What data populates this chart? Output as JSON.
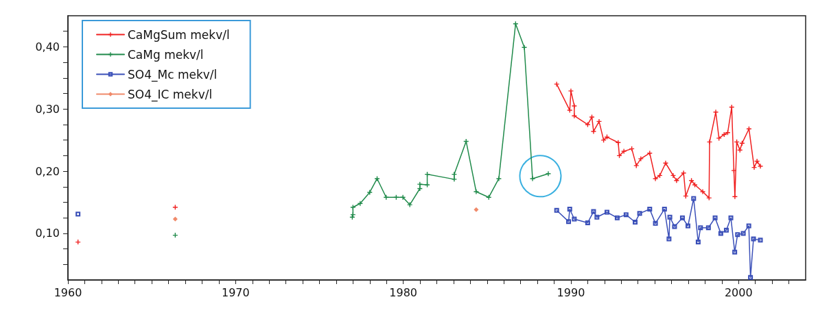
{
  "chart_data": {
    "type": "line",
    "legend": "top left",
    "grid": false,
    "xlim": [
      1960,
      2004
    ],
    "xticks": [
      1960,
      {
        "value": 1961,
        "label": null
      },
      {
        "value": 1962,
        "label": null
      },
      {
        "value": 1963,
        "label": null
      },
      {
        "value": 1964,
        "label": null
      },
      {
        "value": 1965,
        "label": null
      },
      {
        "value": 1966,
        "label": null
      },
      {
        "value": 1967,
        "label": null
      },
      {
        "value": 1968,
        "label": null
      },
      {
        "value": 1969,
        "label": null
      },
      1970,
      {
        "value": 1971,
        "label": null
      },
      {
        "value": 1972,
        "label": null
      },
      {
        "value": 1973,
        "label": null
      },
      {
        "value": 1974,
        "label": null
      },
      {
        "value": 1975,
        "label": null
      },
      {
        "value": 1976,
        "label": null
      },
      {
        "value": 1977,
        "label": null
      },
      {
        "value": 1978,
        "label": null
      },
      {
        "value": 1979,
        "label": null
      },
      1980,
      {
        "value": 1981,
        "label": null
      },
      {
        "value": 1982,
        "label": null
      },
      {
        "value": 1983,
        "label": null
      },
      {
        "value": 1984,
        "label": null
      },
      {
        "value": 1985,
        "label": null
      },
      {
        "value": 1986,
        "label": null
      },
      {
        "value": 1987,
        "label": null
      },
      {
        "value": 1988,
        "label": null
      },
      {
        "value": 1989,
        "label": null
      },
      1990,
      {
        "value": 1991,
        "label": null
      },
      {
        "value": 1992,
        "label": null
      },
      {
        "value": 1993,
        "label": null
      },
      {
        "value": 1994,
        "label": null
      },
      {
        "value": 1995,
        "label": null
      },
      {
        "value": 1996,
        "label": null
      },
      {
        "value": 1997,
        "label": null
      },
      {
        "value": 1998,
        "label": null
      },
      {
        "value": 1999,
        "label": null
      },
      2000,
      {
        "value": 2001,
        "label": null
      },
      {
        "value": 2002,
        "label": null
      },
      {
        "value": 2003,
        "label": null
      }
    ],
    "ylim": [
      0.025,
      0.45
    ],
    "yticks": [
      {
        "value": 0.05,
        "label": null
      },
      {
        "value": 0.075,
        "label": null
      },
      {
        "value": 0.1,
        "label": "0,10"
      },
      {
        "value": 0.125,
        "label": null
      },
      {
        "value": 0.15,
        "label": null
      },
      {
        "value": 0.175,
        "label": null
      },
      {
        "value": 0.2,
        "label": "0,20"
      },
      {
        "value": 0.225,
        "label": null
      },
      {
        "value": 0.25,
        "label": null
      },
      {
        "value": 0.275,
        "label": null
      },
      {
        "value": 0.3,
        "label": "0,30"
      },
      {
        "value": 0.325,
        "label": null
      },
      {
        "value": 0.35,
        "label": null
      },
      {
        "value": 0.375,
        "label": null
      },
      {
        "value": 0.4,
        "label": "0,40"
      },
      {
        "value": 0.425,
        "label": null
      }
    ],
    "series": [
      {
        "name": "CaMgSum mekv/l",
        "color": "#f02020",
        "marker": "cross",
        "x": [
          1960.6,
          1963,
          1966.4,
          1975,
          1989.15,
          1989.93,
          1990.0,
          1990.2,
          1990.2,
          1991.0,
          1991.25,
          1991.35,
          1991.68,
          1991.95,
          1992.15,
          1992.82,
          1992.89,
          1993.16,
          1993.63,
          1993.9,
          1994.17,
          1994.7,
          1995.04,
          1995.3,
          1995.65,
          1996.1,
          1996.3,
          1996.72,
          1996.85,
          1997.19,
          1997.39,
          1997.86,
          1998.24,
          1998.27,
          1998.64,
          1998.83,
          1999.14,
          1999.35,
          1999.59,
          1999.72,
          1999.78,
          1999.89,
          2000.08,
          2000.21,
          2000.62,
          2000.93,
          2001.1,
          2001.3
        ],
        "values": [
          0.086,
          null,
          0.142,
          null,
          0.34,
          0.298,
          0.329,
          0.305,
          0.289,
          0.275,
          0.287,
          0.264,
          0.28,
          0.25,
          0.255,
          0.246,
          0.225,
          0.232,
          0.236,
          0.209,
          0.22,
          0.229,
          0.188,
          0.193,
          0.213,
          0.193,
          0.185,
          0.197,
          0.16,
          0.185,
          0.178,
          0.167,
          0.157,
          0.247,
          0.295,
          0.253,
          0.259,
          0.262,
          0.303,
          0.201,
          0.159,
          0.247,
          0.234,
          0.245,
          0.268,
          0.206,
          0.216,
          0.208
        ]
      },
      {
        "name": "CaMg mekv/l",
        "color": "#1f8a4a",
        "marker": "cross",
        "x": [
          1966.4,
          1970,
          1976.96,
          1977.0,
          1977.0,
          1977.43,
          1978.0,
          1978.44,
          1978.98,
          1979.58,
          1979.98,
          1980.39,
          1980.99,
          1980.99,
          1981.43,
          1981.43,
          1983.04,
          1983.04,
          1983.75,
          1984.35,
          1985.1,
          1985.7,
          1986.7,
          1987.22,
          1987.71,
          1988.65
        ],
        "values": [
          0.097,
          null,
          0.126,
          0.13,
          0.142,
          0.148,
          0.166,
          0.188,
          0.158,
          0.158,
          0.158,
          0.146,
          0.172,
          0.179,
          0.178,
          0.195,
          0.187,
          0.195,
          0.248,
          0.167,
          0.158,
          0.188,
          0.437,
          0.399,
          0.188,
          0.196
        ]
      },
      {
        "name": "SO4_Mc mekv/l",
        "color": "#3a4fb8",
        "marker": "square",
        "x": [
          1960.6,
          1975,
          1989.15,
          1989.86,
          1989.93,
          1990.2,
          1991.0,
          1991.35,
          1991.55,
          1992.15,
          1992.76,
          1993.29,
          1993.83,
          1994.1,
          1994.7,
          1995.04,
          1995.58,
          1995.85,
          1995.9,
          1996.18,
          1996.65,
          1996.98,
          1997.32,
          1997.59,
          1997.73,
          1998.2,
          1998.6,
          1998.94,
          1999.27,
          1999.54,
          1999.77,
          1999.94,
          2000.28,
          2000.61,
          2000.71,
          2000.89,
          2001.3
        ],
        "values": [
          0.131,
          null,
          0.137,
          0.119,
          0.139,
          0.123,
          0.117,
          0.135,
          0.126,
          0.134,
          0.125,
          0.13,
          0.118,
          0.132,
          0.139,
          0.116,
          0.139,
          0.091,
          0.126,
          0.111,
          0.125,
          0.112,
          0.156,
          0.086,
          0.109,
          0.109,
          0.125,
          0.1,
          0.105,
          0.125,
          0.07,
          0.098,
          0.1,
          0.112,
          0.029,
          0.091,
          0.089
        ]
      },
      {
        "name": "SO4_IC mekv/l",
        "color": "#f08a6a",
        "marker": "diamond",
        "x": [
          1966.4,
          1975,
          1984.35
        ],
        "values": [
          0.123,
          null,
          0.138
        ]
      }
    ]
  }
}
